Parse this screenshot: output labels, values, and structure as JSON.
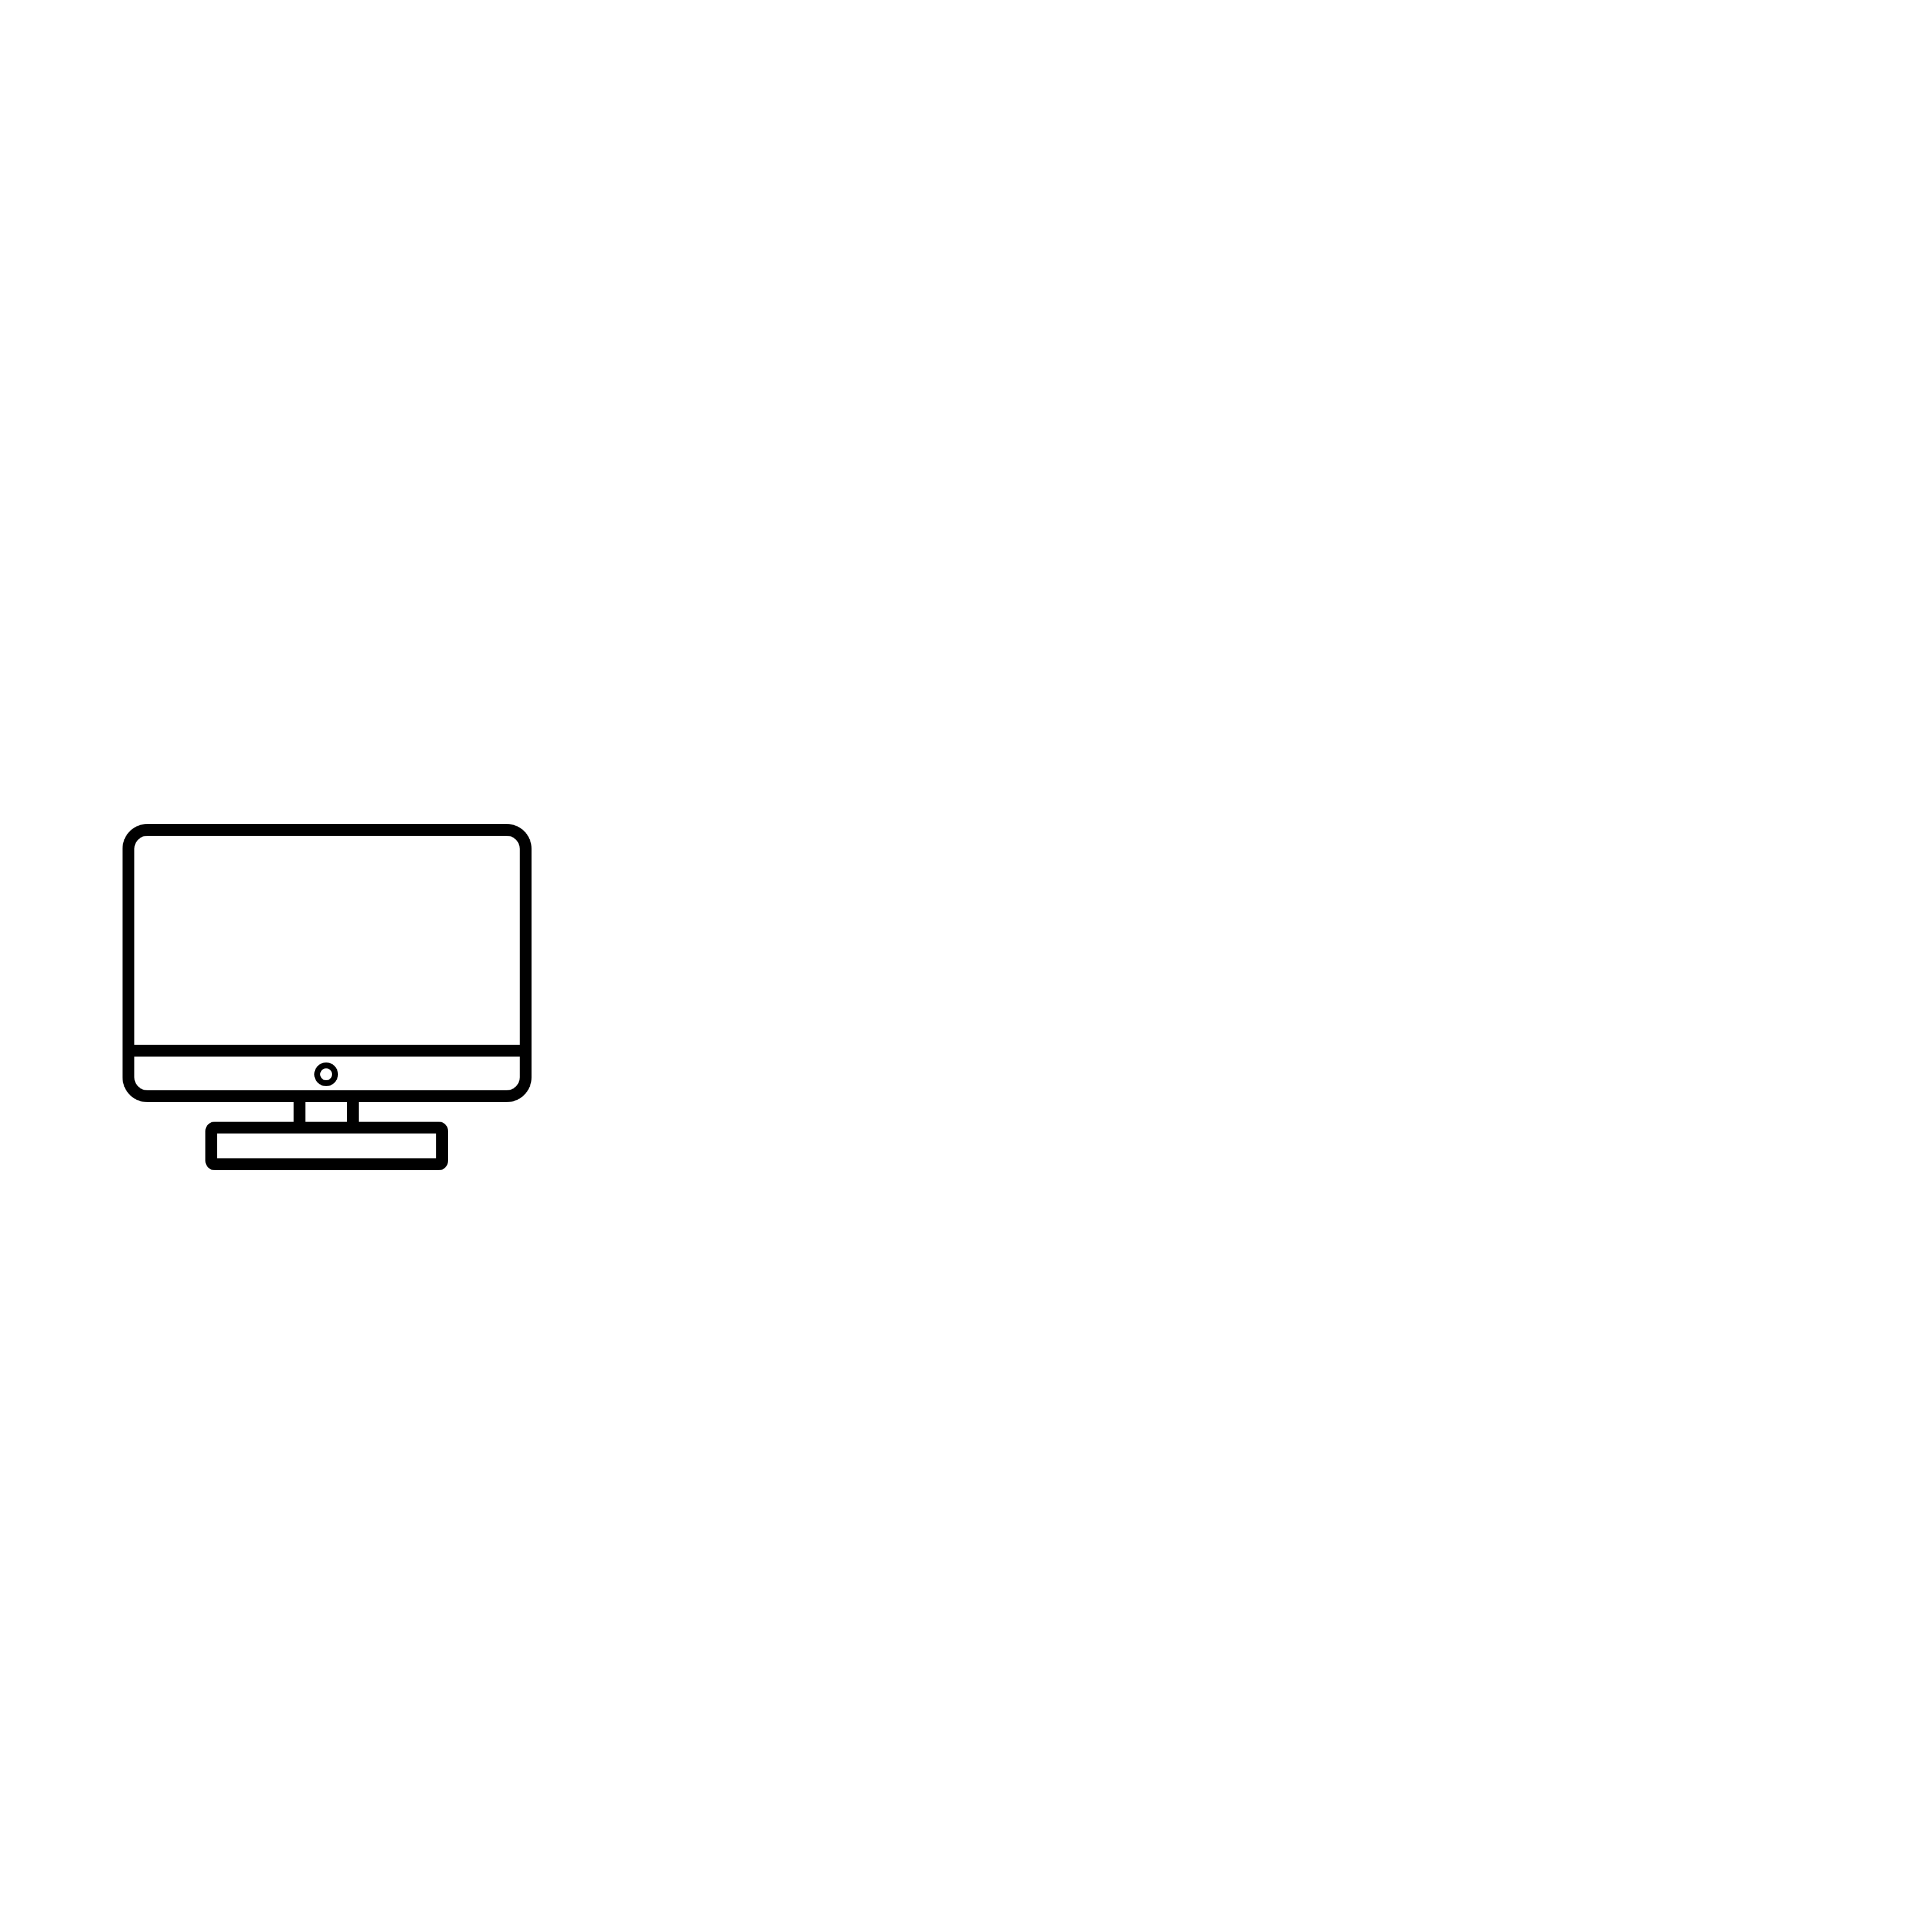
{
  "canvas": {
    "background": "#ffffff"
  },
  "icon": {
    "name": "desktop-monitor-icon",
    "stroke_color": "#000000",
    "fill_color": "#ffffff"
  }
}
